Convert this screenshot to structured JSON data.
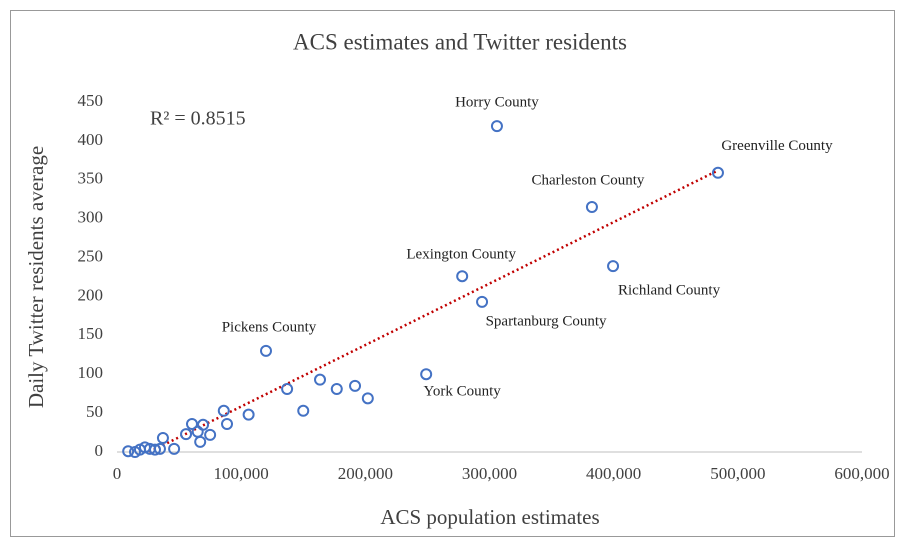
{
  "chart_data": {
    "type": "scatter",
    "title": "ACS estimates and Twitter residents",
    "x_label": "ACS population estimates",
    "y_label": "Daily Twitter residents average",
    "annotation": "R² = 0.8515",
    "color": "#4472c4",
    "trendline_color": "#c00000",
    "x": [
      306000,
      484000,
      382500,
      399500,
      278000,
      294000,
      120000,
      249000,
      9000,
      14500,
      18500,
      22500,
      26500,
      30600,
      34600,
      37000,
      46000,
      55600,
      60400,
      65000,
      67000,
      69300,
      75000,
      86000,
      88600,
      106000,
      137000,
      150000,
      163500,
      177000,
      191700,
      202000
    ],
    "y": [
      419,
      359,
      315,
      239,
      226,
      193,
      130,
      100,
      1,
      0,
      3,
      6,
      4,
      3,
      4,
      18,
      4,
      23,
      36,
      26,
      13,
      35,
      22,
      53,
      36,
      48,
      81,
      53,
      93,
      81,
      85,
      69
    ],
    "labels": [
      "Horry County",
      "Greenville County",
      "Charleston County",
      "Richland County",
      "Lexington County",
      "Spartanburg County",
      "Pickens County",
      "York County",
      null,
      null,
      null,
      null,
      null,
      null,
      null,
      null,
      null,
      null,
      null,
      null,
      null,
      null,
      null,
      null,
      null,
      null,
      null,
      null,
      null,
      null,
      null,
      null
    ],
    "trendline": {
      "x": [
        26000,
        484000
      ],
      "y": [
        0,
        362
      ]
    },
    "xlim": [
      0,
      600000
    ],
    "ylim": [
      0,
      450
    ],
    "xticks": [
      0,
      {
        "value": 100000,
        "label": "100,000"
      },
      {
        "value": 200000,
        "label": "200,000"
      },
      {
        "value": 300000,
        "label": "300,000"
      },
      {
        "value": 400000,
        "label": "400,000"
      },
      {
        "value": 500000,
        "label": "500,000"
      },
      {
        "value": 600000,
        "label": "600,000"
      }
    ],
    "yticks": [
      0,
      50,
      100,
      150,
      200,
      250,
      300,
      350,
      400,
      450
    ]
  }
}
